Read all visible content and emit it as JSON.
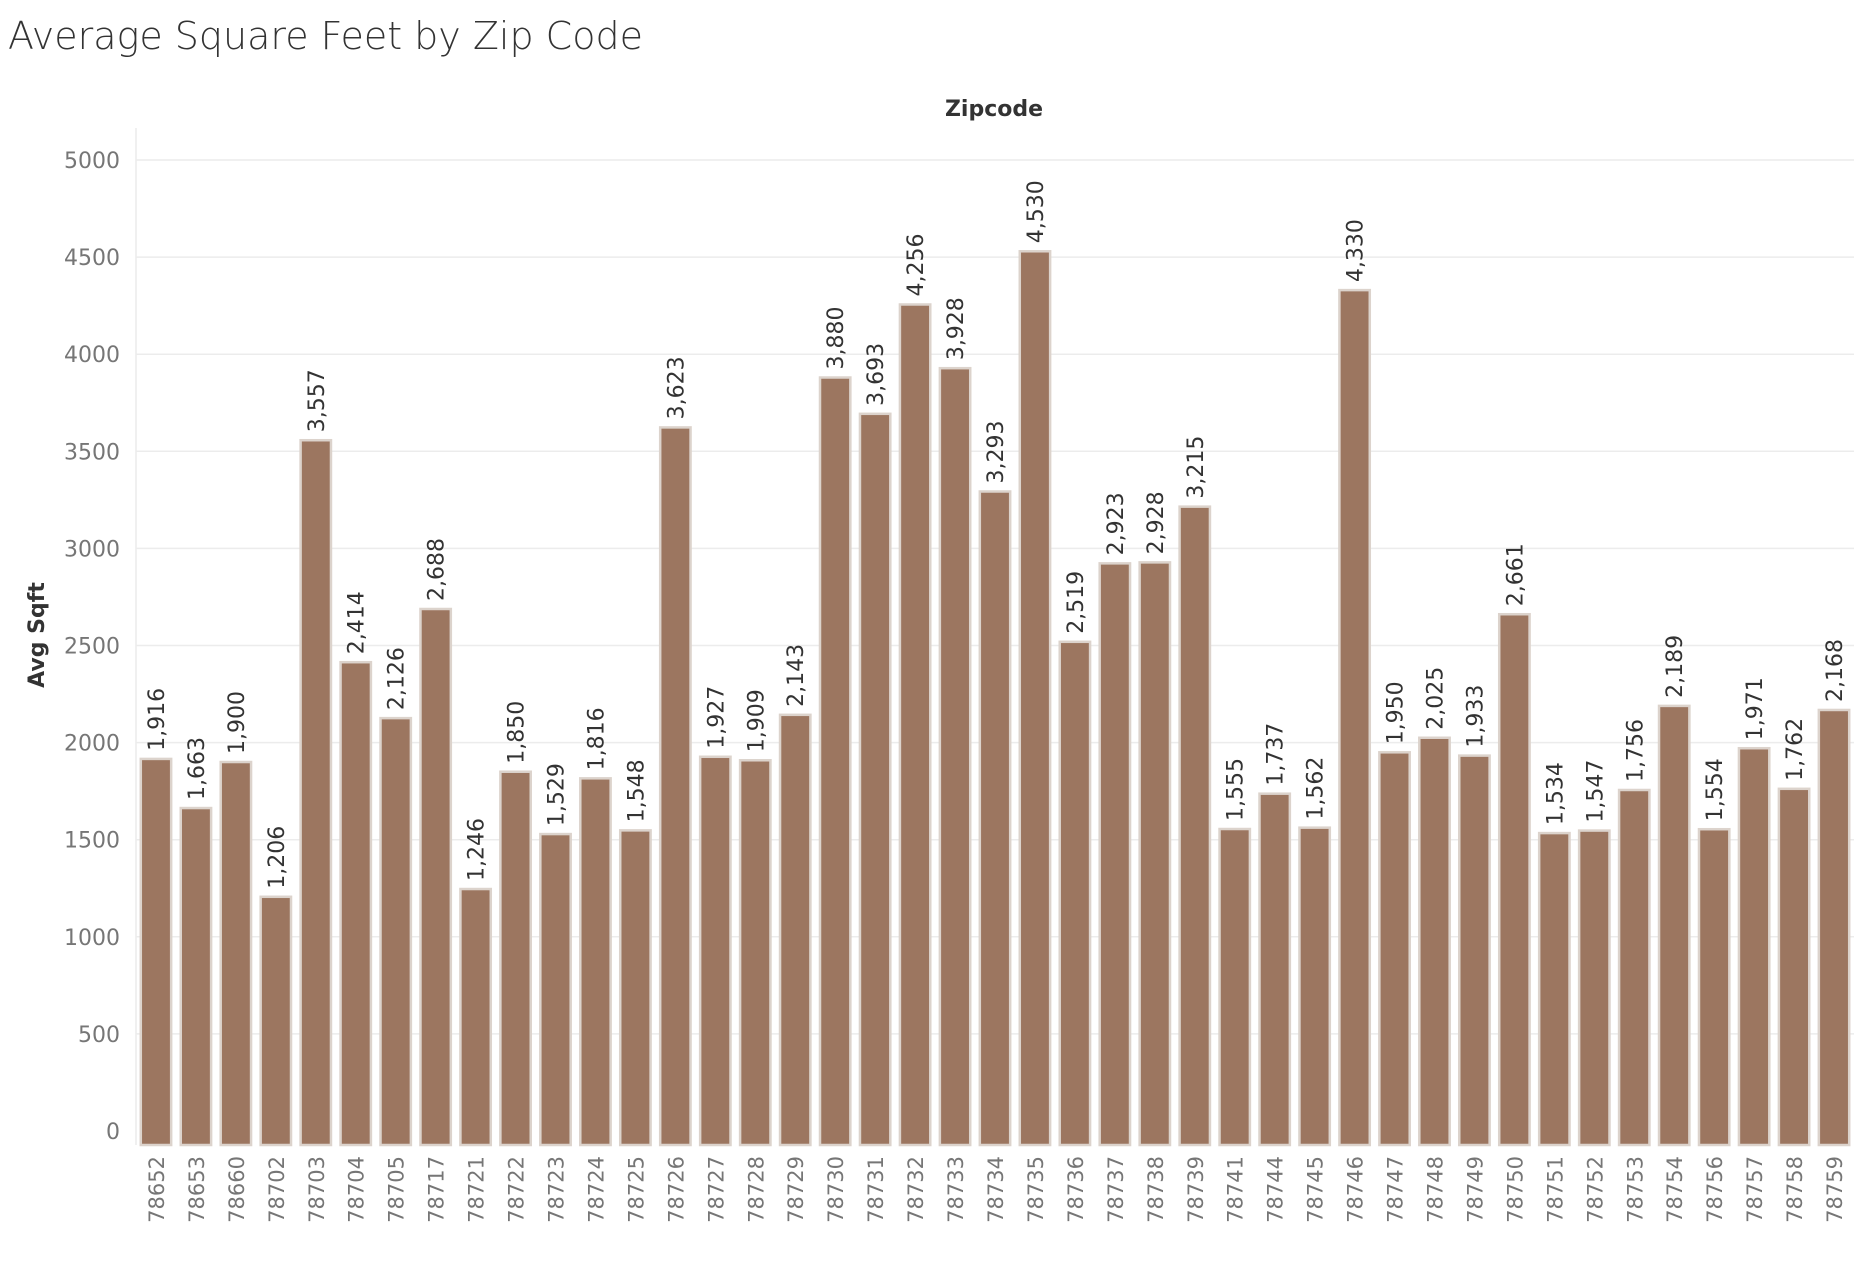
{
  "chart_data": {
    "type": "bar",
    "title": "Average Square Feet by Zip Code",
    "column_header": "Zipcode",
    "ylabel": "Avg Sqft",
    "ylim": [
      0,
      5000
    ],
    "yticks": [
      "0",
      "500",
      "1000",
      "1500",
      "2000",
      "2500",
      "3000",
      "3500",
      "4000",
      "4500",
      "5000"
    ],
    "grid": true,
    "bar_color": "#9c7660",
    "bar_outline_color": "#dcd3cc",
    "categories": [
      "78652",
      "78653",
      "78660",
      "78702",
      "78703",
      "78704",
      "78705",
      "78717",
      "78721",
      "78722",
      "78723",
      "78724",
      "78725",
      "78726",
      "78727",
      "78728",
      "78729",
      "78730",
      "78731",
      "78732",
      "78733",
      "78734",
      "78735",
      "78736",
      "78737",
      "78738",
      "78739",
      "78741",
      "78744",
      "78745",
      "78746",
      "78747",
      "78748",
      "78749",
      "78750",
      "78751",
      "78752",
      "78753",
      "78754",
      "78756",
      "78757",
      "78758",
      "78759"
    ],
    "values": [
      1916,
      1663,
      1900,
      1206,
      3557,
      2414,
      2126,
      2688,
      1246,
      1850,
      1529,
      1816,
      1548,
      3623,
      1927,
      1909,
      2143,
      3880,
      3693,
      4256,
      3928,
      3293,
      4530,
      2519,
      2923,
      2928,
      3215,
      1555,
      1737,
      1562,
      4330,
      1950,
      2025,
      1933,
      2661,
      1534,
      1547,
      1756,
      2189,
      1554,
      1971,
      1762,
      2168
    ],
    "value_labels": [
      "1,916",
      "1,663",
      "1,900",
      "1,206",
      "3,557",
      "2,414",
      "2,126",
      "2,688",
      "1,246",
      "1,850",
      "1,529",
      "1,816",
      "1,548",
      "3,623",
      "1,927",
      "1,909",
      "2,143",
      "3,880",
      "3,693",
      "4,256",
      "3,928",
      "3,293",
      "4,530",
      "2,519",
      "2,923",
      "2,928",
      "3,215",
      "1,555",
      "1,737",
      "1,562",
      "4,330",
      "1,950",
      "2,025",
      "1,933",
      "2,661",
      "1,534",
      "1,547",
      "1,756",
      "2,189",
      "1,554",
      "1,971",
      "1,762",
      "2,168"
    ]
  }
}
